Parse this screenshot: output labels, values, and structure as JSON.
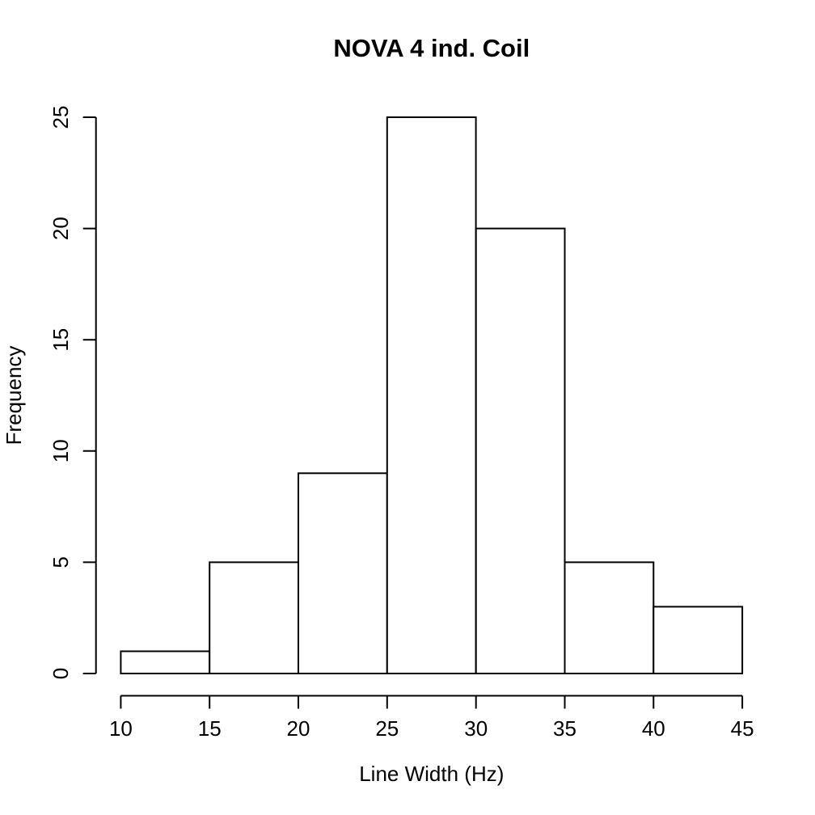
{
  "page": {
    "background": "#ffffff"
  },
  "chart_data": {
    "type": "bar",
    "subtype": "histogram",
    "title": "NOVA 4 ind. Coil",
    "xlabel": "Line Width (Hz)",
    "ylabel": "Frequency",
    "bin_breaks": [
      10,
      15,
      20,
      25,
      30,
      35,
      40,
      45
    ],
    "counts": [
      1,
      5,
      9,
      25,
      20,
      5,
      3
    ],
    "x_ticks": [
      10,
      15,
      20,
      25,
      30,
      35,
      40,
      45
    ],
    "y_ticks": [
      0,
      5,
      10,
      15,
      20,
      25
    ],
    "xlim": [
      10,
      45
    ],
    "ylim": [
      0,
      25
    ],
    "grid": false,
    "legend": false,
    "y_tick_labels_rotated": true,
    "bar_fill": "#ffffff",
    "bar_stroke": "#000000",
    "axis_color": "#000000",
    "text_color": "#000000",
    "background": "#ffffff"
  }
}
